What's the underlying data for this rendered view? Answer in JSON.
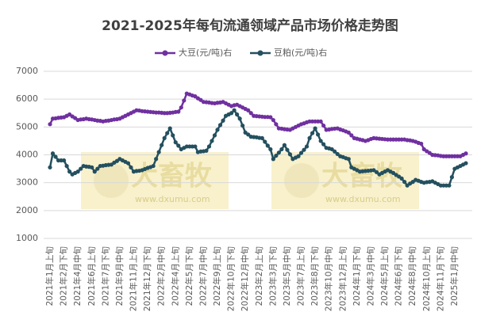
{
  "chart_data": {
    "type": "line",
    "title": "2021-2025年每旬流通领域产品市场价格走势图",
    "watermark": "大畜牧",
    "watermark_url": "www.dxumu.com",
    "categories": [
      "2021年1月上旬",
      null,
      null,
      null,
      null,
      "2021年2月下旬",
      null,
      null,
      null,
      null,
      "2021年4月中旬",
      null,
      null,
      null,
      null,
      "2021年6月上旬",
      null,
      null,
      null,
      null,
      "2021年7月下旬",
      null,
      null,
      null,
      null,
      "2021年9月中旬",
      null,
      null,
      null,
      null,
      "2021年11月上旬",
      null,
      null,
      null,
      null,
      "2021年12月下旬",
      null,
      null,
      null,
      null,
      "2022年2月中旬",
      null,
      null,
      null,
      null,
      "2022年4月上旬",
      null,
      null,
      null,
      null,
      "2022年5月下旬",
      null,
      null,
      null,
      null,
      "2022年7月中旬",
      null,
      null,
      null,
      null,
      "2022年9月上旬",
      null,
      null,
      null,
      null,
      "2022年10月下旬",
      null,
      null,
      null,
      null,
      "2022年12月中旬",
      null,
      null,
      null,
      null,
      "2023年2月上旬",
      null,
      null,
      null,
      null,
      "2023年3月下旬",
      null,
      null,
      null,
      null,
      "2023年5月中旬",
      null,
      null,
      null,
      null,
      "2023年7月上旬",
      null,
      null,
      null,
      null,
      "2023年8月下旬",
      null,
      null,
      null,
      null,
      "2023年10月中旬",
      null,
      null,
      null,
      null,
      "2023年12月上旬",
      null,
      null,
      null,
      null,
      "2024年1月下旬",
      null,
      null,
      null,
      null,
      "2024年3月中旬",
      null,
      null,
      null,
      null,
      "2024年5月上旬",
      null,
      null,
      null,
      null,
      "2024年6月下旬",
      null,
      null,
      null,
      null,
      "2024年8月中旬",
      null,
      null,
      null,
      null,
      "2024年10月上旬",
      null,
      null,
      null,
      null,
      "2024年11月下旬",
      null,
      null,
      null,
      null,
      "2025年1月中旬",
      null,
      null,
      null,
      null
    ],
    "series": [
      {
        "name": "大豆(元/吨)右",
        "color": "#7030a0",
        "values": [
          5100,
          5300,
          5310,
          5330,
          5340,
          5350,
          5400,
          5450,
          5380,
          5320,
          5250,
          5270,
          5280,
          5300,
          5280,
          5270,
          5250,
          5230,
          5220,
          5200,
          5220,
          5230,
          5250,
          5270,
          5280,
          5300,
          5350,
          5400,
          5450,
          5500,
          5550,
          5600,
          5590,
          5570,
          5560,
          5550,
          5540,
          5530,
          5520,
          5520,
          5510,
          5500,
          5500,
          5510,
          5520,
          5540,
          5550,
          5700,
          5950,
          6200,
          6170,
          6130,
          6100,
          6030,
          5970,
          5900,
          5890,
          5880,
          5860,
          5850,
          5870,
          5880,
          5900,
          5850,
          5800,
          5750,
          5780,
          5800,
          5750,
          5700,
          5650,
          5600,
          5500,
          5400,
          5390,
          5380,
          5370,
          5360,
          5360,
          5350,
          5250,
          5100,
          4950,
          4940,
          4920,
          4910,
          4900,
          4950,
          5000,
          5050,
          5100,
          5130,
          5170,
          5200,
          5200,
          5200,
          5200,
          5200,
          5050,
          4900,
          4910,
          4930,
          4940,
          4950,
          4910,
          4880,
          4840,
          4800,
          4700,
          4600,
          4580,
          4550,
          4530,
          4500,
          4530,
          4570,
          4600,
          4590,
          4580,
          4570,
          4560,
          4550,
          4550,
          4550,
          4550,
          4550,
          4550,
          4550,
          4530,
          4520,
          4500,
          4470,
          4430,
          4400,
          4200,
          4130,
          4070,
          4000,
          3990,
          3980,
          3960,
          3950,
          3950,
          3950,
          3950,
          3950,
          3950,
          3950,
          4000,
          4050
        ]
      },
      {
        "name": "豆粕(元/吨)右",
        "color": "#24505f",
        "values": [
          3550,
          4050,
          3930,
          3800,
          3800,
          3800,
          3600,
          3400,
          3300,
          3350,
          3400,
          3500,
          3600,
          3580,
          3570,
          3550,
          3400,
          3500,
          3600,
          3610,
          3630,
          3640,
          3650,
          3720,
          3780,
          3850,
          3800,
          3750,
          3700,
          3550,
          3400,
          3420,
          3430,
          3450,
          3490,
          3530,
          3560,
          3600,
          3850,
          4100,
          4350,
          4600,
          4780,
          4950,
          4700,
          4450,
          4330,
          4200,
          4250,
          4300,
          4300,
          4300,
          4300,
          4100,
          4120,
          4130,
          4150,
          4300,
          4500,
          4700,
          4900,
          5070,
          5230,
          5400,
          5450,
          5500,
          5600,
          5450,
          5300,
          5050,
          4800,
          4730,
          4650,
          4640,
          4630,
          4610,
          4600,
          4470,
          4330,
          4200,
          3850,
          3970,
          4080,
          4200,
          4350,
          4180,
          4020,
          3850,
          3900,
          3950,
          4070,
          4180,
          4300,
          4600,
          4780,
          4950,
          4730,
          4500,
          4380,
          4250,
          4230,
          4200,
          4120,
          4030,
          3950,
          3920,
          3880,
          3850,
          3550,
          3500,
          3450,
          3400,
          3410,
          3420,
          3430,
          3440,
          3450,
          3380,
          3300,
          3350,
          3400,
          3450,
          3400,
          3350,
          3280,
          3220,
          3150,
          3030,
          2900,
          2970,
          3030,
          3100,
          3070,
          3030,
          3000,
          3020,
          3030,
          3050,
          3000,
          2950,
          2900,
          2900,
          2900,
          2900,
          3200,
          3500,
          3550,
          3600,
          3650,
          3700
        ]
      }
    ],
    "ylim": [
      1000,
      7000
    ],
    "yticks": [
      1000,
      2000,
      3000,
      4000,
      5000,
      6000,
      7000
    ],
    "grid": true,
    "legend": "top"
  }
}
